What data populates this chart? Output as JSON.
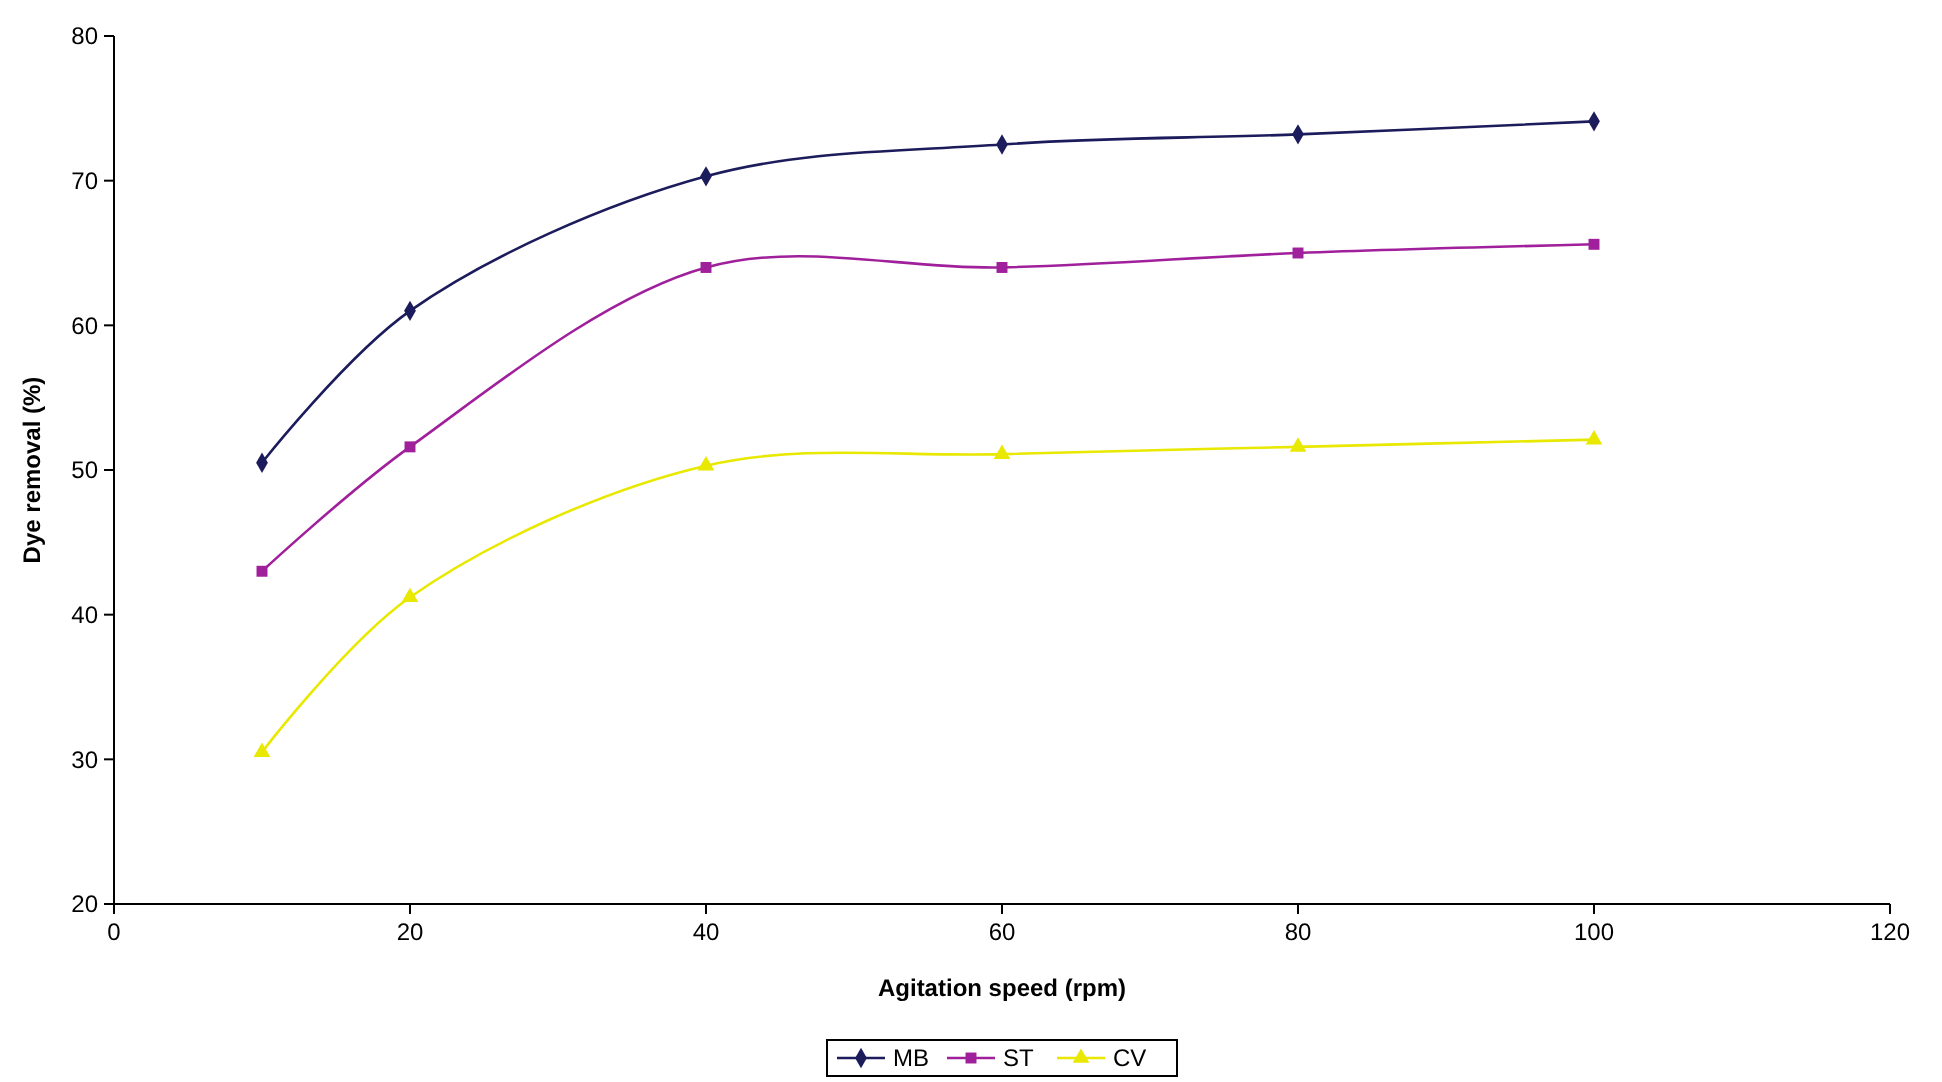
{
  "chart_data": {
    "type": "line",
    "xlabel": "Agitation speed (rpm)",
    "ylabel": "Dye removal (%)",
    "x": [
      10,
      20,
      40,
      60,
      80,
      100
    ],
    "series": [
      {
        "name": "MB",
        "color": "#1c1c5c",
        "marker": "diamond",
        "values": [
          50.5,
          61,
          70.3,
          72.5,
          73.2,
          74.1
        ]
      },
      {
        "name": "ST",
        "color": "#a0209c",
        "marker": "square",
        "values": [
          43,
          51.6,
          64,
          64,
          65,
          65.6
        ]
      },
      {
        "name": "CV",
        "color": "#e8e800",
        "marker": "triangle",
        "values": [
          30.5,
          41.2,
          50.3,
          51.1,
          51.6,
          52.1
        ]
      }
    ],
    "xlim": [
      0,
      120
    ],
    "xticks": [
      0,
      20,
      40,
      60,
      80,
      100,
      120
    ],
    "ylim": [
      20,
      80
    ],
    "yticks": [
      20,
      30,
      40,
      50,
      60,
      70,
      80
    ],
    "grid": false,
    "legend": "bottom",
    "line_style": "solid"
  }
}
